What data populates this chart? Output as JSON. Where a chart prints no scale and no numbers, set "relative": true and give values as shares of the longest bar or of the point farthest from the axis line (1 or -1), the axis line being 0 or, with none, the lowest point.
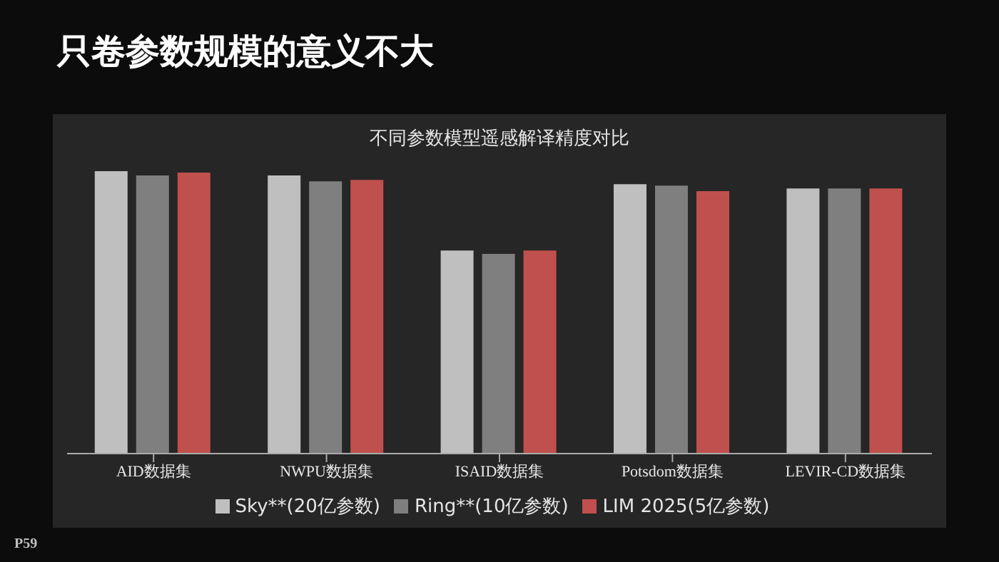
{
  "chart_data": {
    "type": "bar",
    "title": "只卷参数规模的意义不大",
    "subtitle": "不同参数模型遥感解译精度对比",
    "categories": [
      "AID数据集",
      "NWPU数据集",
      "ISAID数据集",
      "Potsdom数据集",
      "LEVIR-CD数据集"
    ],
    "relative": true,
    "series": [
      {
        "name": "Sky**(20亿参数)",
        "color": "#bfbfbf",
        "values": [
          1,
          0.985,
          0.719,
          0.954,
          0.939
        ]
      },
      {
        "name": "Ring**(10亿参数)",
        "color": "#7f7f7f",
        "values": [
          0.985,
          0.964,
          0.707,
          0.949,
          0.939
        ]
      },
      {
        "name": "LIM 2025(5亿参数)",
        "color": "#c0504d",
        "values": [
          0.995,
          0.969,
          0.719,
          0.929,
          0.939
        ]
      }
    ],
    "legend": "bottom",
    "grid": false,
    "annotations": [
      "P59"
    ]
  }
}
